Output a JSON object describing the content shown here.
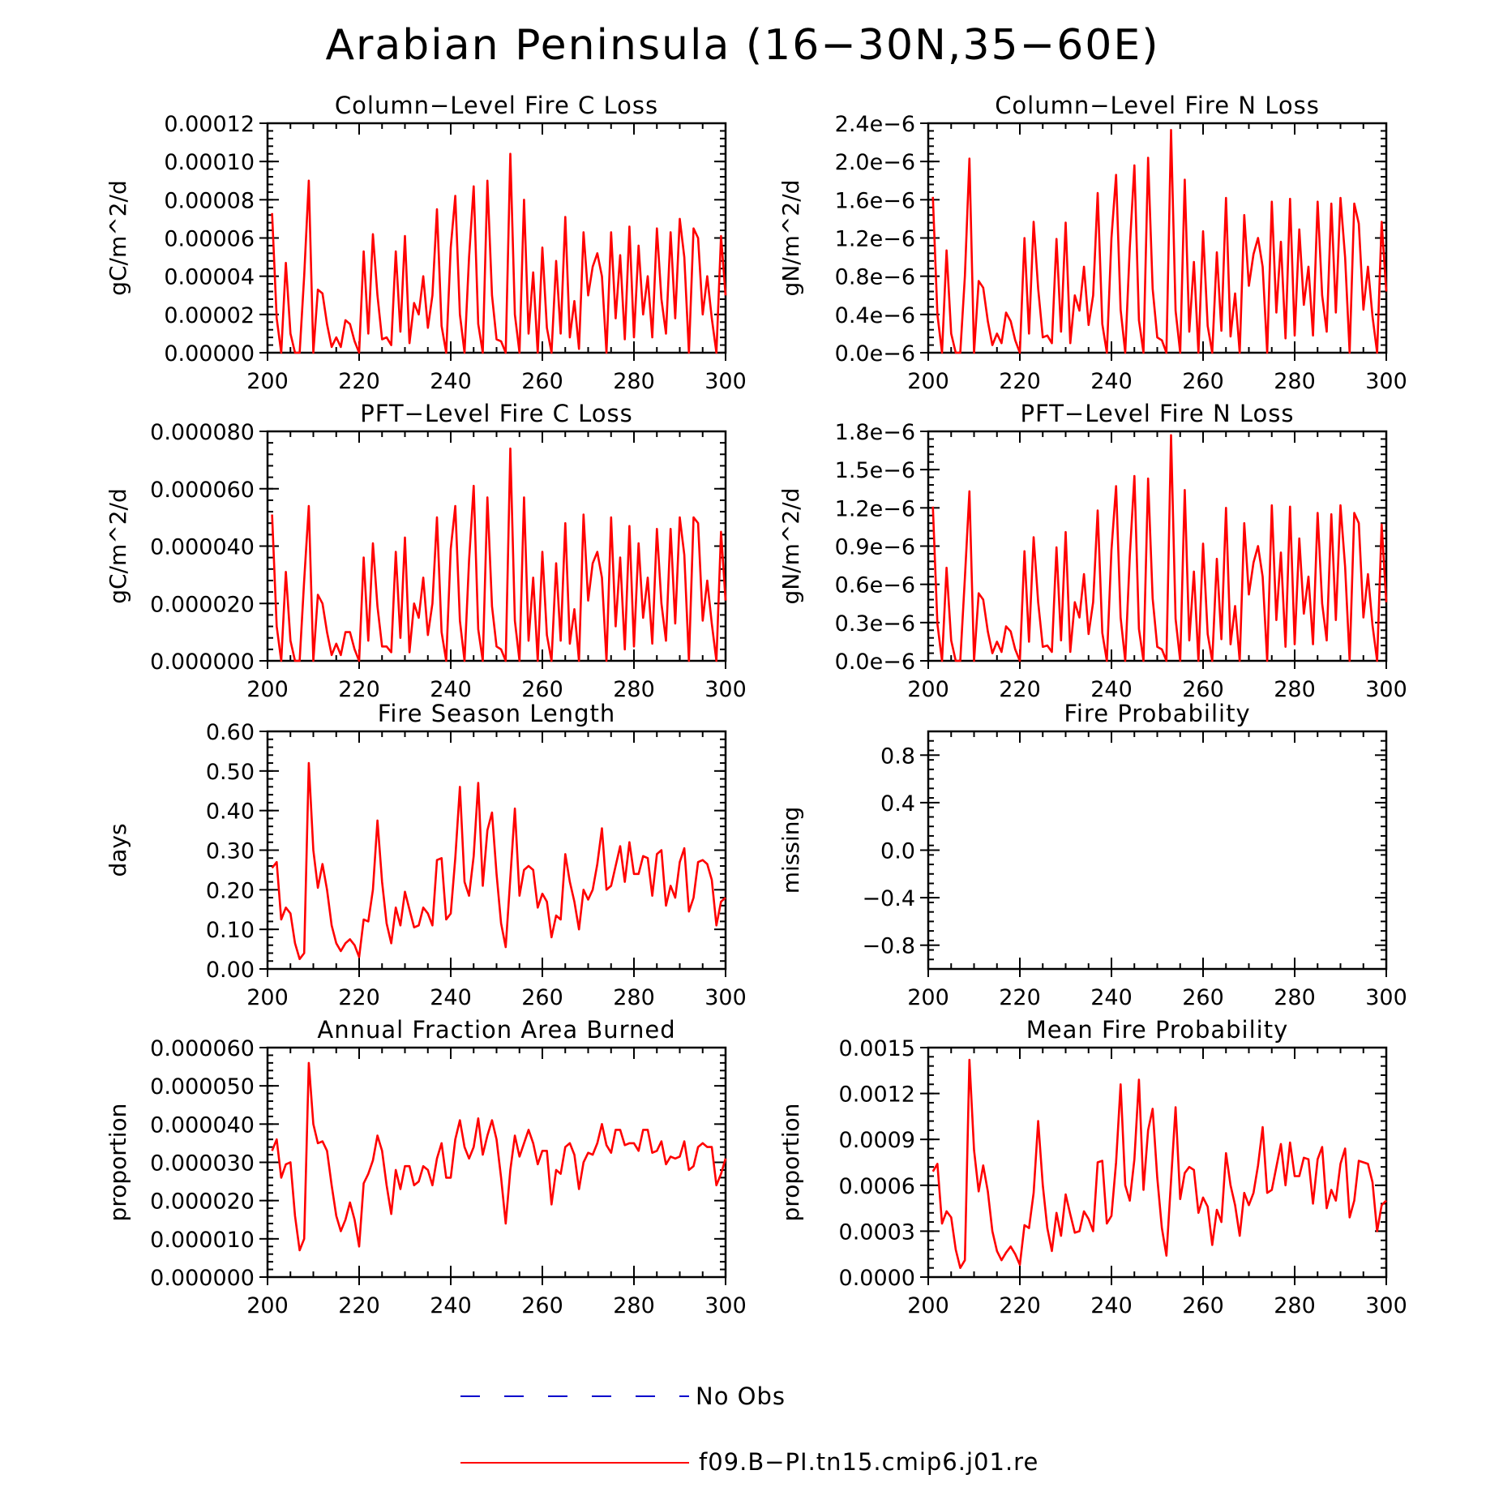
{
  "figure_title": "Arabian Peninsula (16−30N,35−60E)",
  "colors": {
    "series": "#ff0000",
    "no_obs": "#0000cc",
    "axes": "#000000"
  },
  "legend": {
    "items": [
      {
        "label": "No Obs",
        "style": "dashed",
        "color": "#0000cc"
      },
      {
        "label": "f09.B−PI.tn15.cmip6.j01.re",
        "style": "solid",
        "color": "#ff0000"
      }
    ]
  },
  "chart_data": [
    {
      "id": "col_c",
      "type": "line",
      "title": "Column−Level Fire C Loss",
      "ylabel": "gC/m^2/d",
      "xlim": [
        200,
        300
      ],
      "ylim": [
        0,
        0.00012
      ],
      "xticks": [
        "200",
        "220",
        "240",
        "260",
        "280",
        "300"
      ],
      "yticks": [
        "0.00000",
        "0.00002",
        "0.00004",
        "0.00006",
        "0.00008",
        "0.00010",
        "0.00012"
      ],
      "series": [
        {
          "x_start": 201,
          "values": [
            7.3e-05,
            1.8e-05,
            0,
            4.7e-05,
            1e-05,
            0,
            0,
            4e-05,
            9e-05,
            0,
            3.3e-05,
            3.1e-05,
            1.5e-05,
            3e-06,
            8e-06,
            3e-06,
            1.7e-05,
            1.5e-05,
            6e-06,
            0,
            5.3e-05,
            1e-05,
            6.2e-05,
            3e-05,
            7e-06,
            8e-06,
            4e-06,
            5.3e-05,
            1.1e-05,
            6.1e-05,
            5e-06,
            2.6e-05,
            2e-05,
            4e-05,
            1.3e-05,
            3e-05,
            7.5e-05,
            1.4e-05,
            0,
            5.5e-05,
            8.2e-05,
            2e-05,
            0,
            5e-05,
            8.7e-05,
            1.5e-05,
            0,
            9e-05,
            3e-05,
            7e-06,
            6e-06,
            0,
            0.000104,
            2e-05,
            0,
            8e-05,
            1e-05,
            4.2e-05,
            0,
            5.5e-05,
            1.3e-05,
            0,
            4.8e-05,
            1e-05,
            7.1e-05,
            8e-06,
            2.7e-05,
            2e-06,
            6.3e-05,
            3e-05,
            4.5e-05,
            5.2e-05,
            4e-05,
            0,
            6.3e-05,
            1.8e-05,
            5.1e-05,
            7e-06,
            6.6e-05,
            8e-06,
            5.6e-05,
            2e-05,
            4e-05,
            8e-06,
            6.5e-05,
            2.8e-05,
            1e-05,
            6.3e-05,
            1.8e-05,
            7e-05,
            5e-05,
            0,
            6.5e-05,
            6e-05,
            2e-05,
            4e-05,
            1.8e-05,
            0,
            6.1e-05,
            3e-05
          ]
        }
      ]
    },
    {
      "id": "col_n",
      "type": "line",
      "title": "Column−Level Fire N Loss",
      "ylabel": "gN/m^2/d",
      "xlim": [
        200,
        300
      ],
      "ylim": [
        0,
        2.4e-06
      ],
      "xticks": [
        "200",
        "220",
        "240",
        "260",
        "280",
        "300"
      ],
      "yticks": [
        "0.0e−6",
        "0.4e−6",
        "0.8e−6",
        "1.2e−6",
        "1.6e−6",
        "2.0e−6",
        "2.4e−6"
      ],
      "series": [
        {
          "x_start": 201,
          "values": [
            1.63e-06,
            4e-07,
            0,
            1.07e-06,
            2e-07,
            0,
            0,
            8e-07,
            2.03e-06,
            0,
            7.5e-07,
            6.8e-07,
            3.3e-07,
            8e-08,
            2e-07,
            1e-07,
            4.2e-07,
            3.3e-07,
            1.3e-07,
            0,
            1.2e-06,
            2e-07,
            1.37e-06,
            6.7e-07,
            1.6e-07,
            1.8e-07,
            1e-07,
            1.19e-06,
            2.2e-07,
            1.36e-06,
            1e-07,
            6e-07,
            4.4e-07,
            9e-07,
            2.9e-07,
            6e-07,
            1.67e-06,
            3e-07,
            0,
            1.2e-06,
            1.86e-06,
            4.5e-07,
            0,
            1.1e-06,
            1.96e-06,
            3.4e-07,
            0,
            2.04e-06,
            6.7e-07,
            1.6e-07,
            1.3e-07,
            0,
            2.33e-06,
            4.4e-07,
            0,
            1.81e-06,
            2.2e-07,
            9.5e-07,
            0,
            1.27e-06,
            2.8e-07,
            0,
            1.05e-06,
            2.3e-07,
            1.62e-06,
            1.7e-07,
            6.2e-07,
            0,
            1.44e-06,
            7e-07,
            1.03e-06,
            1.2e-06,
            9e-07,
            0,
            1.58e-06,
            4.2e-07,
            1.16e-06,
            1.5e-07,
            1.61e-06,
            1.8e-07,
            1.29e-06,
            5e-07,
            9e-07,
            1.8e-07,
            1.58e-06,
            6e-07,
            2.2e-07,
            1.56e-06,
            4.2e-07,
            1.62e-06,
            1e-06,
            0,
            1.56e-06,
            1.35e-06,
            4.5e-07,
            9e-07,
            3.8e-07,
            0,
            1.37e-06,
            6.4e-07
          ]
        }
      ]
    },
    {
      "id": "pft_c",
      "type": "line",
      "title": "PFT−Level Fire C Loss",
      "ylabel": "gC/m^2/d",
      "xlim": [
        200,
        300
      ],
      "ylim": [
        0,
        8e-05
      ],
      "xticks": [
        "200",
        "220",
        "240",
        "260",
        "280",
        "300"
      ],
      "yticks": [
        "0.000000",
        "0.000020",
        "0.000040",
        "0.000060",
        "0.000080"
      ],
      "series": [
        {
          "x_start": 201,
          "values": [
            5.1e-05,
            1.2e-05,
            0,
            3.1e-05,
            7e-06,
            0,
            0,
            2.8e-05,
            5.4e-05,
            0,
            2.3e-05,
            2e-05,
            1e-05,
            2e-06,
            6e-06,
            2e-06,
            1e-05,
            1e-05,
            4e-06,
            0,
            3.6e-05,
            7e-06,
            4.1e-05,
            1.9e-05,
            5e-06,
            5e-06,
            3e-06,
            3.8e-05,
            8e-06,
            4.3e-05,
            3e-06,
            2e-05,
            1.5e-05,
            2.9e-05,
            9e-06,
            2e-05,
            5e-05,
            1e-05,
            0,
            3.9e-05,
            5.4e-05,
            1.4e-05,
            0,
            3.5e-05,
            6.1e-05,
            1.1e-05,
            0,
            5.7e-05,
            1.9e-05,
            5e-06,
            4e-06,
            0,
            7.4e-05,
            1.4e-05,
            0,
            5.7e-05,
            7e-06,
            2.9e-05,
            0,
            3.8e-05,
            9e-06,
            0,
            3.4e-05,
            7e-06,
            4.8e-05,
            6e-06,
            1.8e-05,
            0,
            5.1e-05,
            2.1e-05,
            3.4e-05,
            3.8e-05,
            2.9e-05,
            0,
            5e-05,
            1.2e-05,
            3.6e-05,
            4e-06,
            4.7e-05,
            5e-06,
            4.1e-05,
            1.5e-05,
            2.9e-05,
            6e-06,
            4.6e-05,
            2e-05,
            7e-06,
            4.6e-05,
            1.3e-05,
            5e-05,
            3.7e-05,
            0,
            5e-05,
            4.8e-05,
            1.4e-05,
            2.8e-05,
            1.3e-05,
            0,
            4.5e-05,
            2.1e-05
          ]
        }
      ]
    },
    {
      "id": "pft_n",
      "type": "line",
      "title": "PFT−Level Fire N Loss",
      "ylabel": "gN/m^2/d",
      "xlim": [
        200,
        300
      ],
      "ylim": [
        0,
        1.8e-06
      ],
      "xticks": [
        "200",
        "220",
        "240",
        "260",
        "280",
        "300"
      ],
      "yticks": [
        "0.0e−6",
        "0.3e−6",
        "0.6e−6",
        "0.9e−6",
        "1.2e−6",
        "1.5e−6",
        "1.8e−6"
      ],
      "series": [
        {
          "x_start": 201,
          "values": [
            1.21e-06,
            2.9e-07,
            0,
            7.3e-07,
            1.6e-07,
            0,
            0,
            6.5e-07,
            1.33e-06,
            0,
            5.3e-07,
            4.8e-07,
            2.3e-07,
            6e-08,
            1.5e-07,
            7e-08,
            2.7e-07,
            2.3e-07,
            9e-08,
            0,
            8.6e-07,
            1.5e-07,
            9.7e-07,
            4.6e-07,
            1.1e-07,
            1.2e-07,
            7e-08,
            8.9e-07,
            1.6e-07,
            1.01e-06,
            7e-08,
            4.6e-07,
            3.4e-07,
            6.8e-07,
            2.1e-07,
            4.6e-07,
            1.18e-06,
            2.2e-07,
            0,
            8.7e-07,
            1.37e-06,
            3.4e-07,
            0,
            8.2e-07,
            1.45e-06,
            2.5e-07,
            0,
            1.43e-06,
            4.9e-07,
            1.1e-07,
            9e-08,
            0,
            1.77e-06,
            3.3e-07,
            0,
            1.34e-06,
            1.6e-07,
            7e-07,
            0,
            9.2e-07,
            2.1e-07,
            0,
            8e-07,
            1.7e-07,
            1.2e-06,
            1.3e-07,
            4.3e-07,
            0,
            1.08e-06,
            5.2e-07,
            7.7e-07,
            9e-07,
            6.6e-07,
            0,
            1.22e-06,
            3.2e-07,
            8.5e-07,
            1.1e-07,
            1.21e-06,
            1.3e-07,
            9.6e-07,
            3.7e-07,
            6.6e-07,
            1.3e-07,
            1.16e-06,
            4.5e-07,
            1.6e-07,
            1.15e-06,
            3.2e-07,
            1.22e-06,
            7.4e-07,
            0,
            1.16e-06,
            1.08e-06,
            3.4e-07,
            6.8e-07,
            2.8e-07,
            0,
            1.07e-06,
            4.6e-07
          ]
        }
      ]
    },
    {
      "id": "fsl",
      "type": "line",
      "title": "Fire Season Length",
      "ylabel": "days",
      "xlim": [
        200,
        300
      ],
      "ylim": [
        0,
        0.6
      ],
      "xticks": [
        "200",
        "220",
        "240",
        "260",
        "280",
        "300"
      ],
      "yticks": [
        "0.00",
        "0.10",
        "0.20",
        "0.30",
        "0.40",
        "0.50",
        "0.60"
      ],
      "series": [
        {
          "x_start": 201,
          "values": [
            0.255,
            0.27,
            0.125,
            0.155,
            0.14,
            0.065,
            0.025,
            0.04,
            0.52,
            0.3,
            0.205,
            0.265,
            0.2,
            0.11,
            0.065,
            0.045,
            0.065,
            0.075,
            0.06,
            0.03,
            0.125,
            0.12,
            0.2,
            0.375,
            0.22,
            0.115,
            0.065,
            0.155,
            0.11,
            0.195,
            0.15,
            0.105,
            0.11,
            0.155,
            0.14,
            0.11,
            0.275,
            0.28,
            0.125,
            0.14,
            0.28,
            0.46,
            0.22,
            0.185,
            0.285,
            0.47,
            0.21,
            0.35,
            0.395,
            0.24,
            0.115,
            0.055,
            0.23,
            0.405,
            0.185,
            0.25,
            0.26,
            0.25,
            0.155,
            0.19,
            0.17,
            0.08,
            0.135,
            0.125,
            0.29,
            0.22,
            0.17,
            0.1,
            0.2,
            0.175,
            0.2,
            0.265,
            0.355,
            0.2,
            0.21,
            0.26,
            0.31,
            0.22,
            0.32,
            0.24,
            0.24,
            0.285,
            0.28,
            0.185,
            0.29,
            0.3,
            0.16,
            0.21,
            0.18,
            0.27,
            0.305,
            0.145,
            0.18,
            0.27,
            0.275,
            0.265,
            0.225,
            0.11,
            0.17,
            0.18
          ]
        }
      ]
    },
    {
      "id": "fprob",
      "type": "line",
      "title": "Fire Probability",
      "ylabel": "missing",
      "xlim": [
        200,
        300
      ],
      "ylim": [
        -1,
        1
      ],
      "xticks": [
        "200",
        "220",
        "240",
        "260",
        "280",
        "300"
      ],
      "yticks": [
        "−0.8",
        "−0.4",
        "0.0",
        "0.4",
        "0.8"
      ],
      "ytick_values": [
        -0.8,
        -0.4,
        0.0,
        0.4,
        0.8
      ],
      "series": []
    },
    {
      "id": "afab",
      "type": "line",
      "title": "Annual Fraction Area Burned",
      "ylabel": "proportion",
      "xlim": [
        200,
        300
      ],
      "ylim": [
        0,
        6e-05
      ],
      "xticks": [
        "200",
        "220",
        "240",
        "260",
        "280",
        "300"
      ],
      "yticks": [
        "0.000000",
        "0.000010",
        "0.000020",
        "0.000030",
        "0.000040",
        "0.000050",
        "0.000060"
      ],
      "series": [
        {
          "x_start": 201,
          "values": [
            3.3e-05,
            3.6e-05,
            2.6e-05,
            2.95e-05,
            3e-05,
            1.6e-05,
            7e-06,
            1e-05,
            5.6e-05,
            4e-05,
            3.5e-05,
            3.55e-05,
            3.3e-05,
            2.4e-05,
            1.6e-05,
            1.2e-05,
            1.5e-05,
            1.95e-05,
            1.5e-05,
            8e-06,
            2.45e-05,
            2.7e-05,
            3.05e-05,
            3.7e-05,
            3.3e-05,
            2.4e-05,
            1.65e-05,
            2.8e-05,
            2.3e-05,
            2.9e-05,
            2.9e-05,
            2.4e-05,
            2.5e-05,
            2.9e-05,
            2.8e-05,
            2.4e-05,
            3.1e-05,
            3.5e-05,
            2.6e-05,
            2.6e-05,
            3.6e-05,
            4.1e-05,
            3.4e-05,
            3.1e-05,
            3.4e-05,
            4.15e-05,
            3.2e-05,
            3.7e-05,
            4.1e-05,
            3.6e-05,
            2.6e-05,
            1.4e-05,
            2.8e-05,
            3.7e-05,
            3.15e-05,
            3.5e-05,
            3.85e-05,
            3.5e-05,
            2.95e-05,
            3.3e-05,
            3.3e-05,
            1.9e-05,
            2.8e-05,
            2.7e-05,
            3.4e-05,
            3.5e-05,
            3.2e-05,
            2.3e-05,
            3e-05,
            3.25e-05,
            3.2e-05,
            3.5e-05,
            4e-05,
            3.45e-05,
            3.25e-05,
            3.85e-05,
            3.85e-05,
            3.45e-05,
            3.5e-05,
            3.5e-05,
            3.3e-05,
            3.85e-05,
            3.85e-05,
            3.25e-05,
            3.3e-05,
            3.55e-05,
            2.95e-05,
            3.15e-05,
            3.1e-05,
            3.15e-05,
            3.55e-05,
            2.8e-05,
            2.9e-05,
            3.4e-05,
            3.5e-05,
            3.4e-05,
            3.4e-05,
            2.4e-05,
            2.7e-05,
            3.1e-05
          ]
        }
      ]
    },
    {
      "id": "mfp",
      "type": "line",
      "title": "Mean Fire Probability",
      "ylabel": "proportion",
      "xlim": [
        200,
        300
      ],
      "ylim": [
        0,
        0.0015
      ],
      "xticks": [
        "200",
        "220",
        "240",
        "260",
        "280",
        "300"
      ],
      "yticks": [
        "0.0000",
        "0.0003",
        "0.0006",
        "0.0009",
        "0.0012",
        "0.0015"
      ],
      "series": [
        {
          "x_start": 201,
          "values": [
            0.00069,
            0.00074,
            0.00035,
            0.00043,
            0.00039,
            0.00018,
            6e-05,
            0.00011,
            0.00142,
            0.00083,
            0.00056,
            0.00073,
            0.00056,
            0.0003,
            0.00017,
            0.00011,
            0.00016,
            0.0002,
            0.00015,
            8e-05,
            0.00034,
            0.00032,
            0.00055,
            0.00102,
            0.0006,
            0.00032,
            0.00017,
            0.00042,
            0.00027,
            0.00054,
            0.00041,
            0.00029,
            0.0003,
            0.00043,
            0.00038,
            0.0003,
            0.00075,
            0.00076,
            0.00035,
            0.0004,
            0.00075,
            0.00126,
            0.0006,
            0.0005,
            0.00077,
            0.00129,
            0.00057,
            0.00096,
            0.0011,
            0.00065,
            0.00032,
            0.00014,
            0.00063,
            0.00111,
            0.00051,
            0.00068,
            0.00072,
            0.0007,
            0.00042,
            0.00052,
            0.00046,
            0.00021,
            0.00044,
            0.00036,
            0.00081,
            0.0006,
            0.00047,
            0.00027,
            0.00055,
            0.00047,
            0.00055,
            0.00073,
            0.00098,
            0.00055,
            0.00057,
            0.00072,
            0.00087,
            0.0006,
            0.00088,
            0.00066,
            0.00066,
            0.00078,
            0.00077,
            0.00048,
            0.00077,
            0.00085,
            0.00045,
            0.00057,
            0.0005,
            0.00074,
            0.00084,
            0.00039,
            0.0005,
            0.00076,
            0.00075,
            0.00074,
            0.00062,
            0.0003,
            0.00047,
            0.0005
          ]
        }
      ]
    }
  ]
}
